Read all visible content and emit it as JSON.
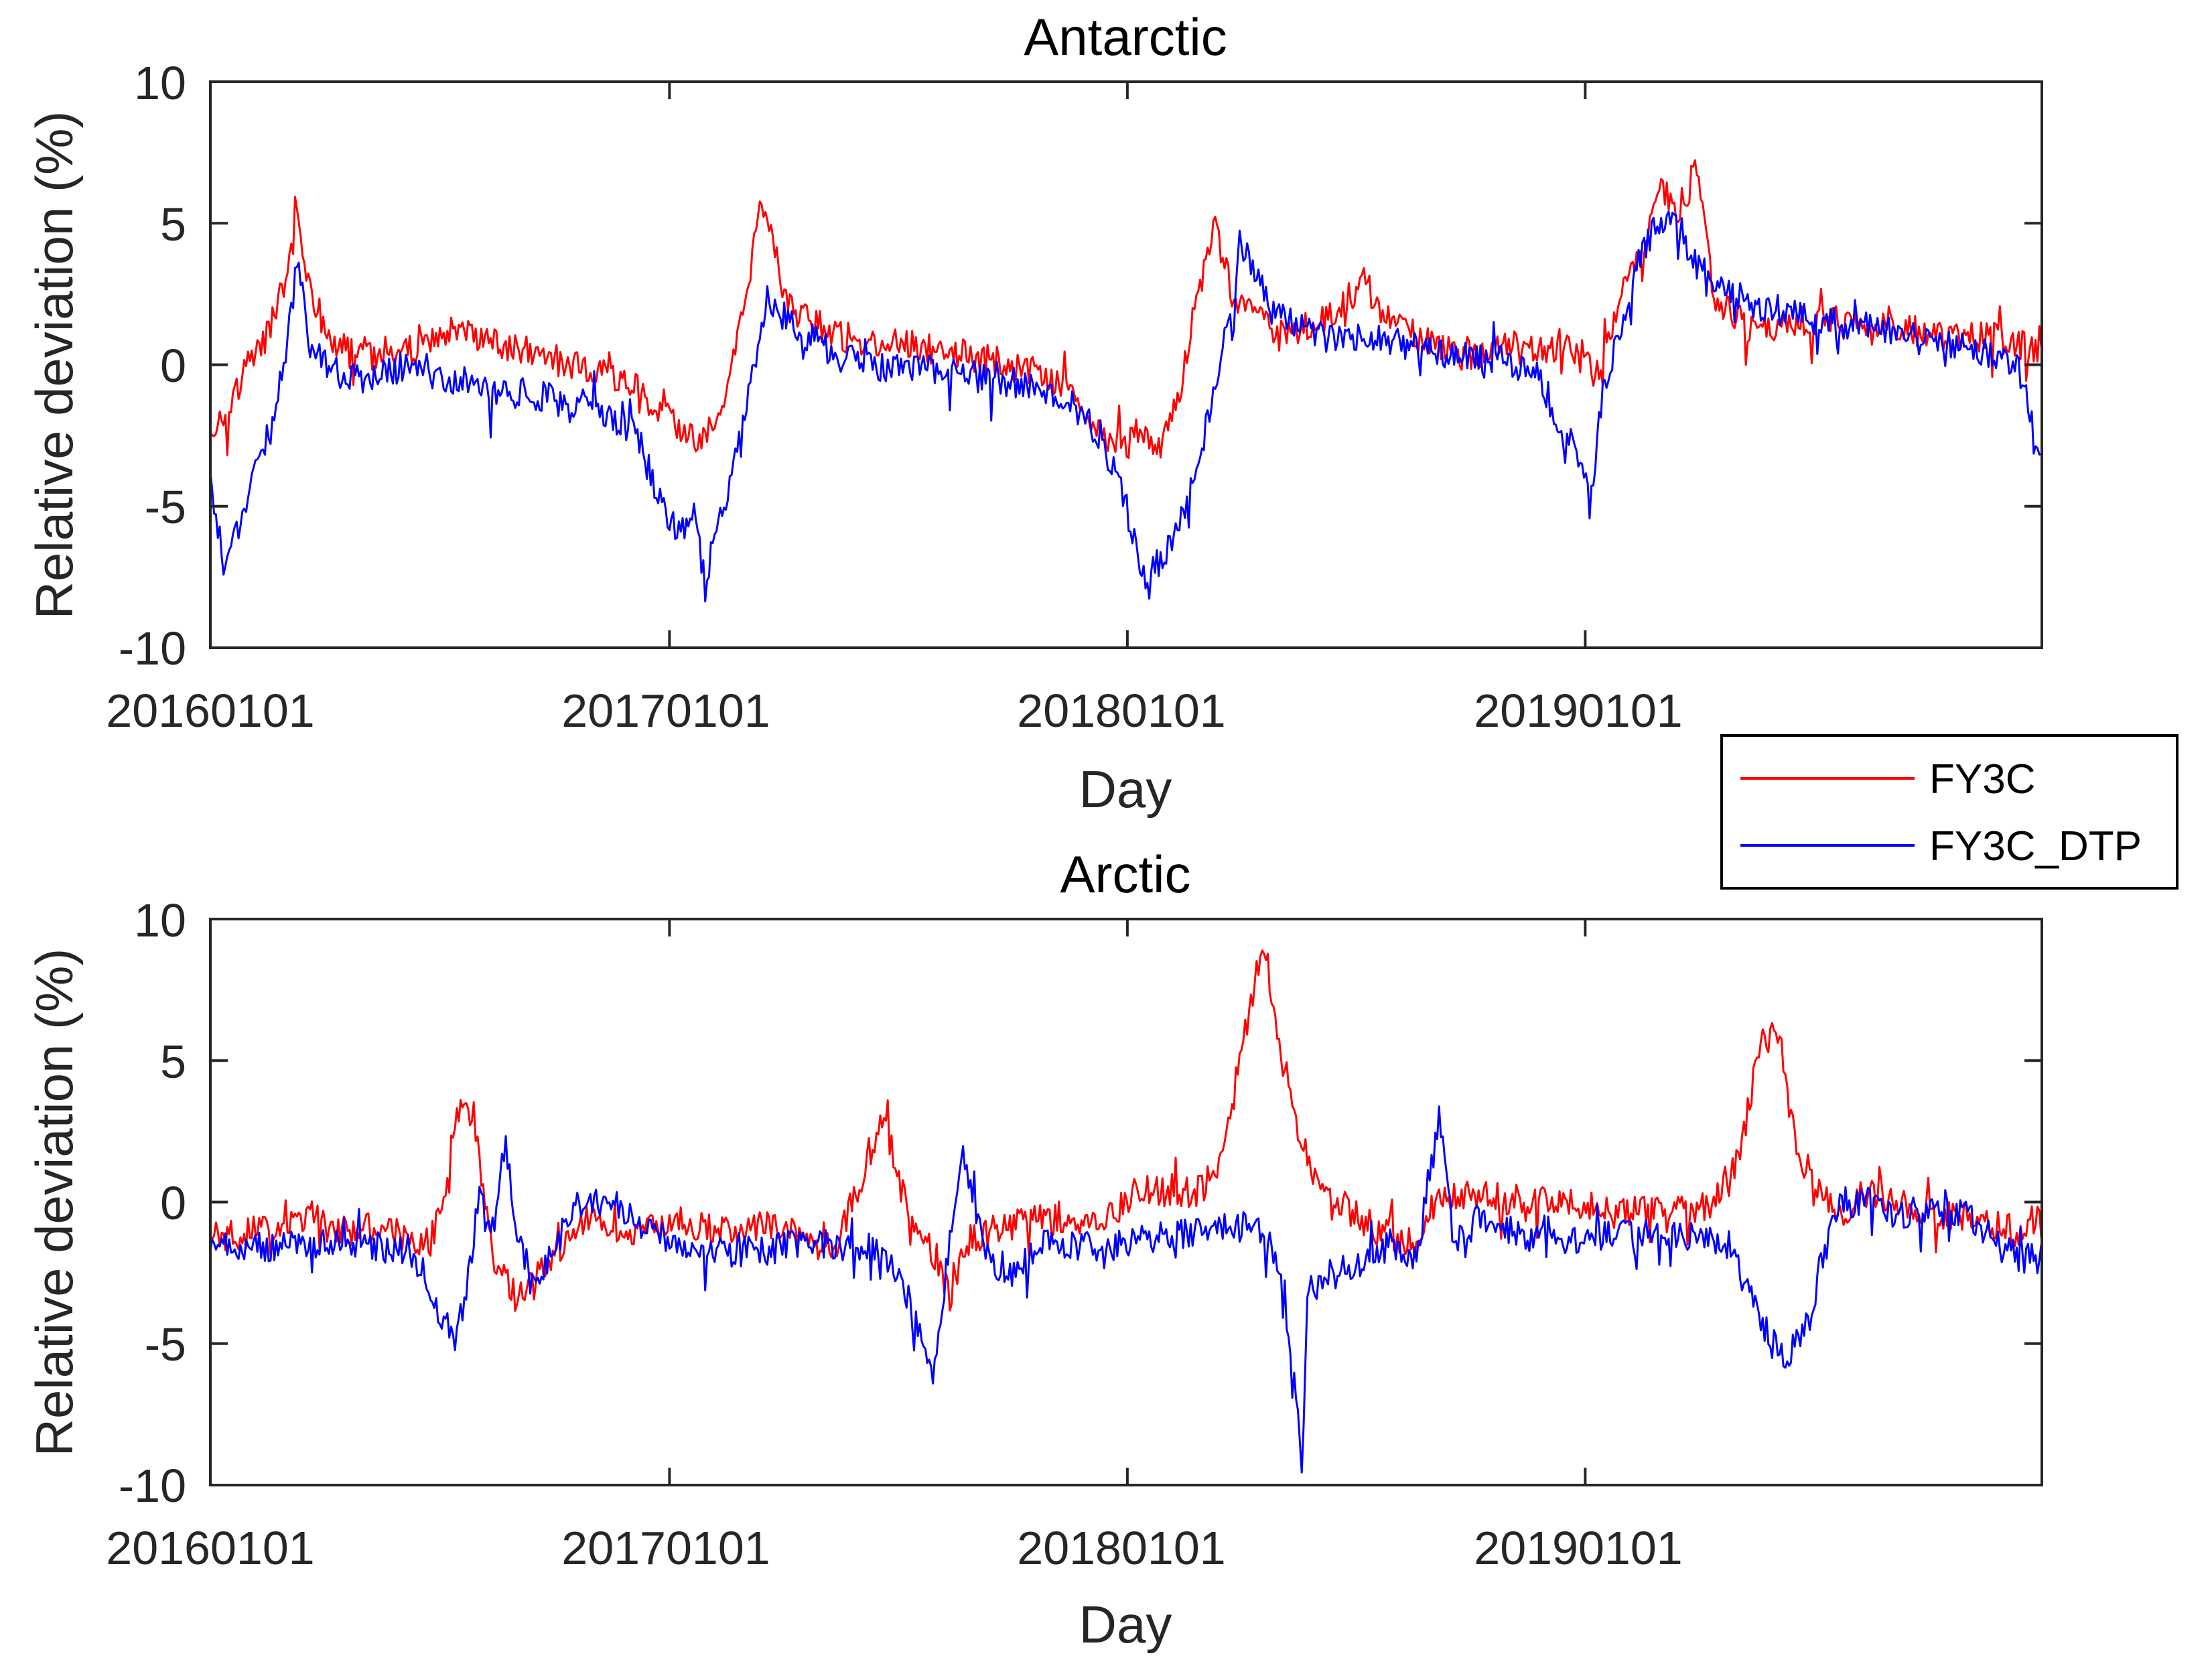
{
  "chart_data": [
    {
      "type": "line",
      "title": "Antarctic",
      "xlabel": "Day",
      "ylabel": "Relative deviation (%)",
      "xlim": [
        0,
        1460
      ],
      "ylim": [
        -10,
        10
      ],
      "yticks": [
        -10,
        -5,
        0,
        5,
        10
      ],
      "xticks": [
        {
          "value": 0,
          "label": "20160101"
        },
        {
          "value": 366,
          "label": "20170101"
        },
        {
          "value": 731,
          "label": "20180101"
        },
        {
          "value": 1096,
          "label": "20190101"
        }
      ],
      "grid": false,
      "series": [
        {
          "name": "FY3C",
          "color": "#ff0000",
          "x": [
            0,
            15,
            30,
            45,
            60,
            70,
            80,
            95,
            110,
            130,
            160,
            190,
            220,
            250,
            280,
            310,
            340,
            360,
            375,
            390,
            400,
            410,
            425,
            440,
            460,
            500,
            540,
            580,
            620,
            660,
            690,
            700,
            710,
            720,
            730,
            740,
            755,
            770,
            785,
            800,
            812,
            815,
            830,
            850,
            880,
            900,
            920,
            940,
            960,
            980,
            1000,
            1030,
            1060,
            1090,
            1100,
            1110,
            1125,
            1140,
            1155,
            1170,
            1185,
            1200,
            1230,
            1260,
            1290,
            1320,
            1350,
            1380,
            1400,
            1420,
            1440,
            1450,
            1460
          ],
          "values": [
            -2.3,
            -1.5,
            0,
            1,
            3,
            5.3,
            2.5,
            1,
            0.4,
            0.2,
            0.5,
            1.2,
            0.8,
            0.5,
            0.1,
            -0.3,
            -0.8,
            -1.8,
            -2.2,
            -3,
            -2,
            -1,
            2,
            5.8,
            2,
            1,
            0.8,
            0.5,
            0.2,
            -0.3,
            -1,
            -2,
            -2.5,
            -2.6,
            -3,
            -2.2,
            -3,
            -1.5,
            2,
            5,
            3,
            2.5,
            2,
            1,
            1.5,
            2,
            3,
            1.5,
            1,
            0.6,
            0.3,
            0.7,
            0.5,
            0.5,
            0,
            -0.2,
            3,
            4,
            6.2,
            5.5,
            6.8,
            2.2,
            1.2,
            1.5,
            1.6,
            1.2,
            1.3,
            1,
            1,
            1,
            0.8,
            0.6,
            0.5
          ]
        },
        {
          "name": "FY3C_DTP",
          "color": "#0000ff",
          "x": [
            0,
            10,
            20,
            35,
            50,
            62,
            70,
            80,
            95,
            110,
            130,
            160,
            190,
            220,
            250,
            280,
            310,
            340,
            360,
            375,
            385,
            395,
            405,
            415,
            430,
            445,
            460,
            500,
            540,
            580,
            620,
            660,
            690,
            700,
            710,
            730,
            745,
            755,
            770,
            785,
            800,
            811,
            815,
            820,
            830,
            845,
            860,
            880,
            900,
            920,
            940,
            960,
            980,
            1000,
            1030,
            1060,
            1070,
            1080,
            1090,
            1100,
            1110,
            1125,
            1140,
            1155,
            1170,
            1185,
            1200,
            1230,
            1260,
            1290,
            1320,
            1350,
            1380,
            1400,
            1420,
            1440,
            1452,
            1460
          ],
          "values": [
            -4,
            -7,
            -6,
            -4,
            -2,
            1,
            3.8,
            0.5,
            0,
            -0.5,
            -0.5,
            0.1,
            -0.5,
            -1,
            -1,
            -1.3,
            -1.5,
            -2.5,
            -5,
            -6,
            -5,
            -7.8,
            -5.5,
            -4,
            -1,
            2.5,
            1.5,
            0.3,
            -0.2,
            -0.2,
            -0.5,
            -0.8,
            -1.5,
            -2,
            -2.5,
            -5,
            -7.6,
            -7,
            -6,
            -4,
            -1,
            2,
            0.5,
            4.5,
            3.5,
            2,
            1.5,
            1,
            1,
            1,
            0.9,
            0.6,
            0.4,
            0.3,
            0.2,
            -0.5,
            -1.5,
            -2.5,
            -3,
            -5,
            -1,
            1.5,
            4,
            5,
            5,
            3.5,
            3,
            2,
            1.8,
            1.5,
            1.3,
            1.2,
            0.8,
            0.5,
            0.3,
            0,
            -2,
            -3.2
          ]
        }
      ]
    },
    {
      "type": "line",
      "title": "Arctic",
      "xlabel": "Day",
      "ylabel": "Relative deviation (%)",
      "xlim": [
        0,
        1460
      ],
      "ylim": [
        -10,
        10
      ],
      "yticks": [
        -10,
        -5,
        0,
        5,
        10
      ],
      "xticks": [
        {
          "value": 0,
          "label": "20160101"
        },
        {
          "value": 366,
          "label": "20170101"
        },
        {
          "value": 731,
          "label": "20180101"
        },
        {
          "value": 1096,
          "label": "20190101"
        }
      ],
      "grid": false,
      "series": [
        {
          "name": "FY3C",
          "color": "#ff0000",
          "x": [
            0,
            20,
            40,
            60,
            80,
            100,
            120,
            140,
            160,
            175,
            185,
            195,
            210,
            225,
            245,
            260,
            275,
            295,
            320,
            350,
            380,
            410,
            440,
            470,
            500,
            520,
            535,
            550,
            560,
            570,
            580,
            590,
            600,
            620,
            640,
            660,
            670,
            680,
            700,
            720,
            740,
            760,
            790,
            810,
            820,
            830,
            840,
            850,
            865,
            880,
            900,
            930,
            960,
            980,
            990,
            1000,
            1010,
            1020,
            1030,
            1040,
            1060,
            1080,
            1100,
            1130,
            1160,
            1190,
            1210,
            1225,
            1235,
            1250,
            1260,
            1270,
            1280,
            1290,
            1300,
            1310,
            1320,
            1340,
            1360,
            1380,
            1400,
            1420,
            1440,
            1460
          ],
          "values": [
            -1.2,
            -1.2,
            -1,
            -0.8,
            -0.5,
            -1,
            -0.8,
            -1,
            -1.2,
            -1.5,
            0,
            3,
            3.2,
            -2,
            -3.5,
            -2.5,
            -1.8,
            -0.6,
            -0.9,
            -1,
            -0.9,
            -0.9,
            -0.8,
            -1.2,
            -1.5,
            1,
            3,
            1,
            -1,
            -1.5,
            -2,
            -3.5,
            -1.5,
            -1,
            -0.8,
            -0.5,
            -0.6,
            -0.7,
            -0.8,
            -0.5,
            0.5,
            0.3,
            0.4,
            2,
            5,
            7,
            9.5,
            6,
            3,
            1,
            0,
            -1,
            -1.5,
            0,
            0.3,
            0.2,
            0.2,
            0.2,
            0.1,
            0,
            0.1,
            0,
            -0.2,
            -0.3,
            -0.3,
            -0.2,
            0.5,
            3,
            5.5,
            6,
            3,
            1,
            0.5,
            0,
            -0.5,
            0,
            0.3,
            0.2,
            -0.3,
            -0.5,
            -0.5,
            -0.8,
            -1,
            -0.5
          ]
        },
        {
          "name": "FY3C_DTP",
          "color": "#0000ff",
          "x": [
            0,
            20,
            40,
            60,
            80,
            100,
            120,
            140,
            160,
            175,
            185,
            195,
            205,
            215,
            225,
            235,
            245,
            255,
            275,
            295,
            320,
            350,
            380,
            410,
            440,
            470,
            500,
            520,
            535,
            550,
            560,
            570,
            575,
            580,
            590,
            600,
            620,
            640,
            660,
            690,
            720,
            740,
            760,
            790,
            810,
            840,
            850,
            860,
            870,
            875,
            880,
            890,
            900,
            920,
            940,
            960,
            980,
            990,
            1000,
            1010,
            1020,
            1030,
            1050,
            1080,
            1100,
            1130,
            1160,
            1190,
            1210,
            1225,
            1235,
            1245,
            1255,
            1265,
            1275,
            1285,
            1300,
            1320,
            1340,
            1360,
            1380,
            1400,
            1420,
            1440,
            1460
          ],
          "values": [
            -1.5,
            -1.5,
            -1.6,
            -1.5,
            -1.5,
            -1.5,
            -1.6,
            -1.6,
            -1.7,
            -3,
            -4.5,
            -5,
            -3,
            0.5,
            -1,
            2,
            -1,
            -3,
            -1.5,
            0,
            0,
            -1,
            -1.5,
            -1.8,
            -1.7,
            -1.5,
            -1.5,
            -1.6,
            -1.8,
            -2.5,
            -4,
            -5.5,
            -6.5,
            -5,
            -1,
            1.5,
            -2,
            -2.5,
            -1.5,
            -1.5,
            -1.6,
            -1.4,
            -1.2,
            -1,
            -0.8,
            -1,
            -2,
            -4.5,
            -9.5,
            -3,
            -3,
            -3,
            -2.5,
            -2,
            -1.5,
            -2,
            3,
            -1,
            -1.5,
            -0.5,
            -0.8,
            -1,
            -1.2,
            -1.3,
            -1.2,
            -1.1,
            -1.2,
            -1.3,
            -1.5,
            -3,
            -4,
            -5,
            -5.5,
            -5,
            -4,
            -2,
            0,
            0,
            -0.5,
            -0.3,
            0,
            -0.5,
            -1.3,
            -2,
            -2
          ]
        }
      ]
    }
  ],
  "legend": {
    "placement": "right, between panels",
    "entries": [
      {
        "label": "FY3C",
        "color": "#ff0000"
      },
      {
        "label": "FY3C_DTP",
        "color": "#0000ff"
      }
    ]
  }
}
